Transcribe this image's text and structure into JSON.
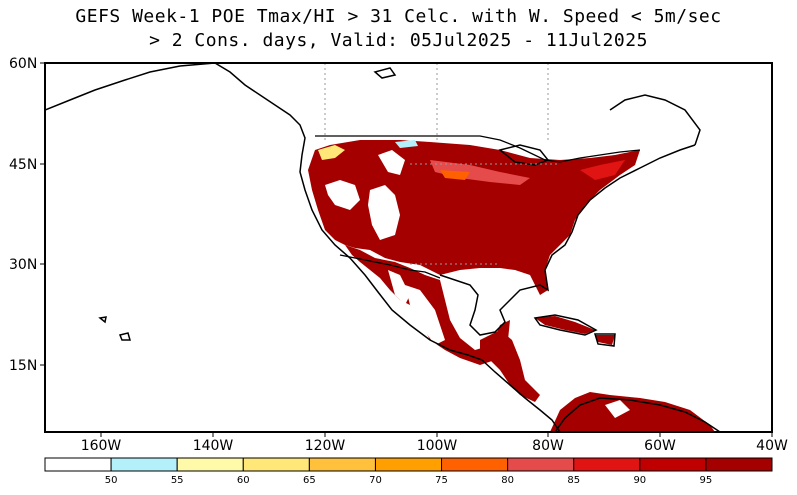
{
  "title": {
    "line1": "GEFS Week-1 POE Tmax/HI > 31 Celc. with W. Speed < 5m/sec",
    "line2": "> 2 Cons. days, Valid: 05Jul2025 - 11Jul2025"
  },
  "map": {
    "lat_labels": [
      "60N",
      "45N",
      "30N",
      "15N"
    ],
    "lon_labels": [
      "160W",
      "140W",
      "120W",
      "100W",
      "80W",
      "60W",
      "40W"
    ]
  },
  "colorbar": {
    "colors": [
      "#ffffff",
      "#b4f0fa",
      "#fffaaa",
      "#ffe878",
      "#ffc03c",
      "#ffa000",
      "#ff6000",
      "#e64b4b",
      "#e11414",
      "#c00000",
      "#a50000"
    ],
    "labels": [
      "50",
      "55",
      "60",
      "65",
      "70",
      "75",
      "80",
      "85",
      "90",
      "95"
    ]
  }
}
